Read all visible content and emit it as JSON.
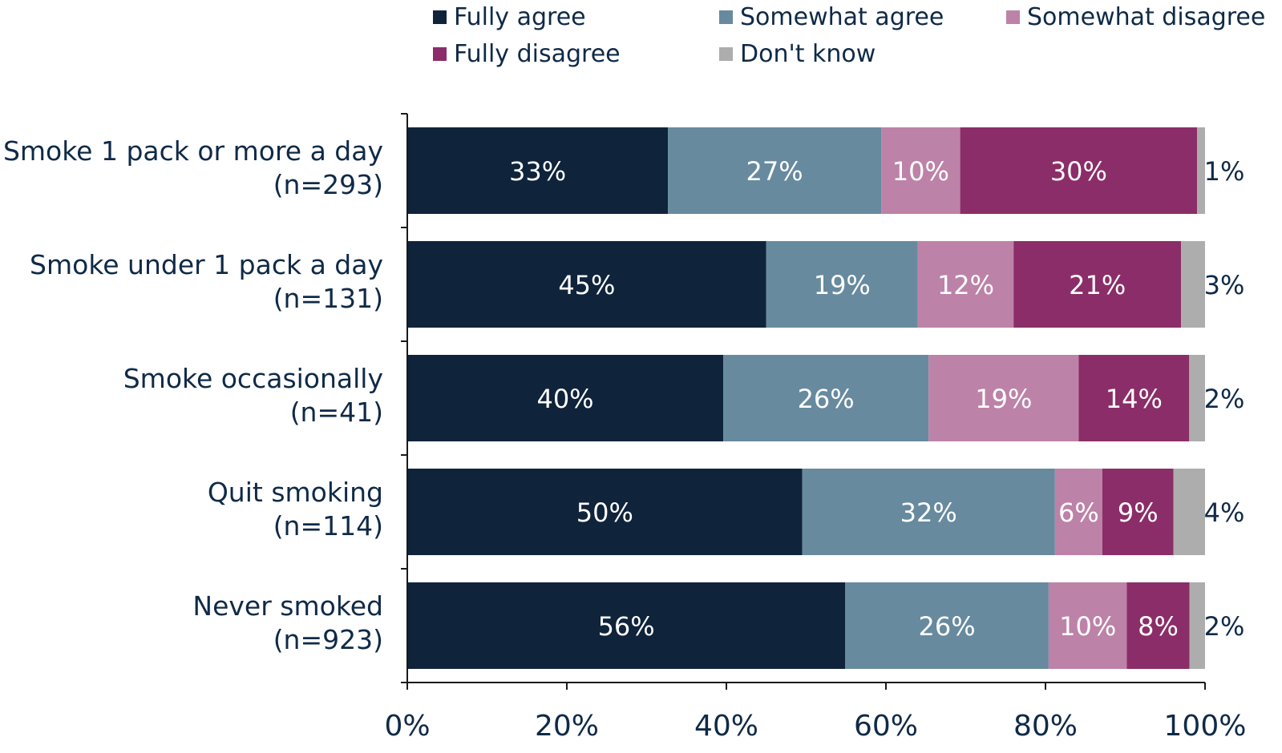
{
  "chart_data": {
    "type": "bar",
    "orientation": "horizontal",
    "stacked": true,
    "categories": [
      {
        "label": "Smoke 1 pack or more a day",
        "n": "(n=293)"
      },
      {
        "label": "Smoke under 1 pack a day",
        "n": "(n=131)"
      },
      {
        "label": "Smoke occasionally",
        "n": "(n=41)"
      },
      {
        "label": "Quit smoking",
        "n": "(n=114)"
      },
      {
        "label": "Never smoked",
        "n": "(n=923)"
      }
    ],
    "series": [
      {
        "name": "Fully agree",
        "color": "#0f233b",
        "values": [
          33,
          45,
          40,
          50,
          56
        ]
      },
      {
        "name": "Somewhat agree",
        "color": "#678a9e",
        "values": [
          27,
          19,
          26,
          32,
          26
        ]
      },
      {
        "name": "Somewhat disagree",
        "color": "#bd82a8",
        "values": [
          10,
          12,
          19,
          6,
          10
        ]
      },
      {
        "name": "Fully disagree",
        "color": "#8b2d68",
        "values": [
          30,
          21,
          14,
          9,
          8
        ]
      },
      {
        "name": "Don't know",
        "color": "#adadad",
        "values": [
          1,
          3,
          2,
          4,
          2
        ]
      }
    ],
    "xlim": [
      0,
      100
    ],
    "xticks": [
      "0%",
      "20%",
      "40%",
      "60%",
      "80%",
      "100%"
    ],
    "value_suffix": "%",
    "grid": false,
    "legend_position": "top"
  }
}
